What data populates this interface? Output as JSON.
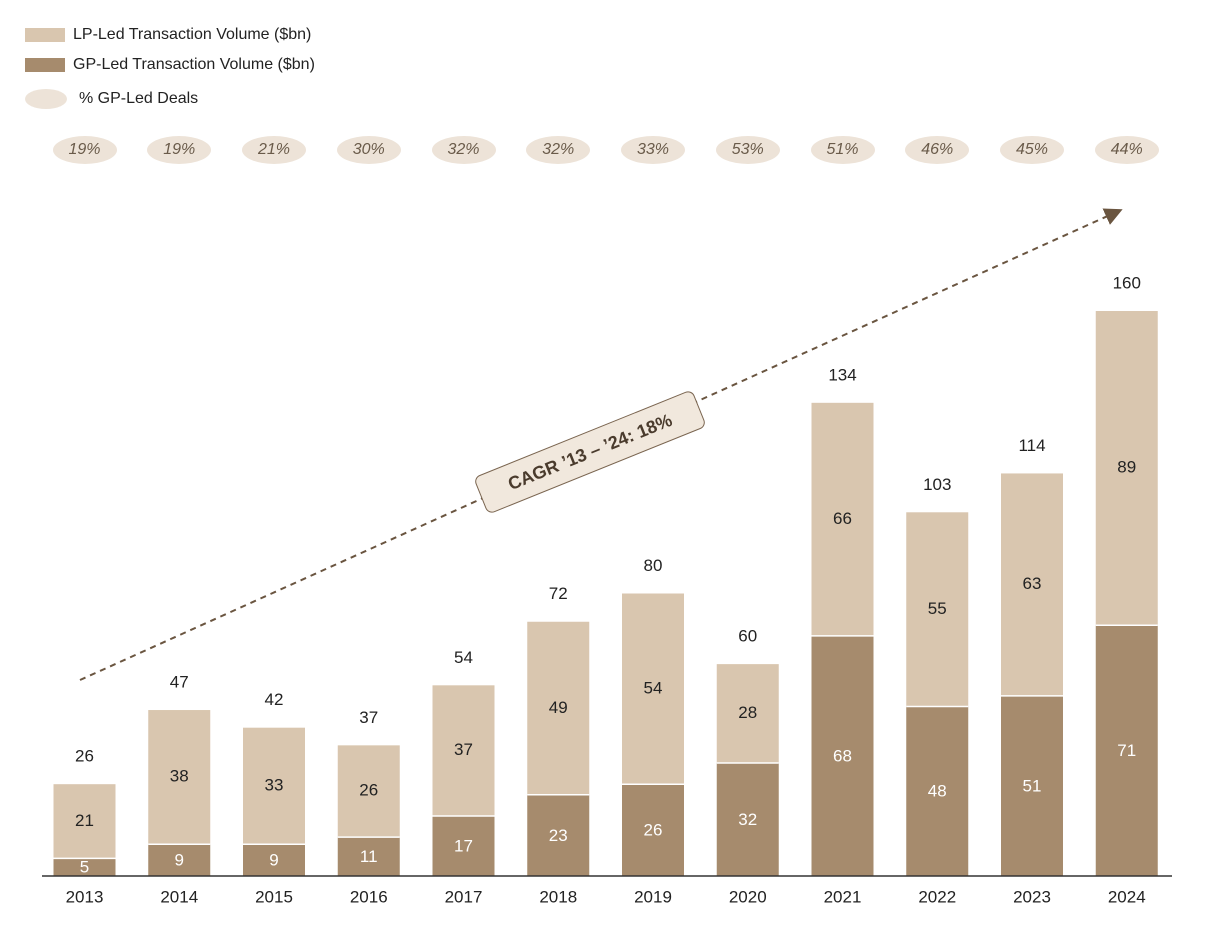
{
  "colors": {
    "lp": "#d9c6af",
    "gp": "#a68b6d",
    "pct_bubble": "#ede3d8",
    "arrow": "#6a5540",
    "axis": "#333333"
  },
  "legend": {
    "lp_label": "LP-Led Transaction Volume ($bn)",
    "gp_label": "GP-Led Transaction Volume ($bn)",
    "pct_label": "% GP-Led Deals"
  },
  "annotation": {
    "cagr_text": "CAGR ’13 – ’24: 18%"
  },
  "chart_data": {
    "type": "bar",
    "stacked": true,
    "title": "",
    "xlabel": "",
    "ylabel": "",
    "categories": [
      "2013",
      "2014",
      "2015",
      "2016",
      "2017",
      "2018",
      "2019",
      "2020",
      "2021",
      "2022",
      "2023",
      "2024"
    ],
    "series": [
      {
        "name": "GP-Led Transaction Volume ($bn)",
        "values": [
          5,
          9,
          9,
          11,
          17,
          23,
          26,
          32,
          68,
          48,
          51,
          71
        ]
      },
      {
        "name": "LP-Led Transaction Volume ($bn)",
        "values": [
          21,
          38,
          33,
          26,
          37,
          49,
          54,
          28,
          66,
          55,
          63,
          89
        ]
      }
    ],
    "totals": [
      26,
      47,
      42,
      37,
      54,
      72,
      80,
      60,
      134,
      103,
      114,
      160
    ],
    "gp_share_labels": [
      "19%",
      "19%",
      "21%",
      "30%",
      "32%",
      "32%",
      "33%",
      "53%",
      "51%",
      "46%",
      "45%",
      "44%"
    ],
    "ylim": [
      0,
      160
    ],
    "grid": false,
    "legend_position": "top-left"
  }
}
